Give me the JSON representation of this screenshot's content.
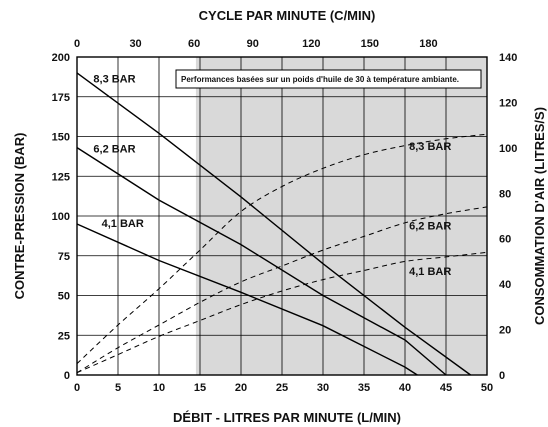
{
  "chart_data": {
    "type": "line",
    "top_axis_title": "CYCLE PAR MINUTE (C/MIN)",
    "xlabel": "DÉBIT - LITRES PAR MINUTE (L/MIN)",
    "ylabel_left": "CONTRE-PRESSION  (BAR)",
    "ylabel_right": "CONSOMMATION D'AIR (LITRES/S)",
    "annotation": "Performances basées sur un poids d'huile de 30 à température ambiante.",
    "xlim": [
      0,
      50
    ],
    "ylim_left": [
      0,
      200
    ],
    "ylim_right": [
      0,
      140
    ],
    "top_axis_range": [
      0,
      210
    ],
    "x_ticks": [
      0,
      5,
      10,
      15,
      20,
      25,
      30,
      35,
      40,
      45,
      50
    ],
    "y_left_ticks": [
      0,
      25,
      50,
      75,
      100,
      125,
      150,
      175,
      200
    ],
    "y_right_ticks": [
      0,
      20,
      40,
      60,
      80,
      100,
      120,
      140
    ],
    "top_ticks": [
      0,
      30,
      60,
      90,
      120,
      150,
      180
    ],
    "grid": true,
    "shaded_region_x": [
      14.5,
      50
    ],
    "pressure_series": [
      {
        "name": "8,3 BAR",
        "style": "solid",
        "axis": "left",
        "x": [
          0,
          10,
          20,
          30,
          40,
          48
        ],
        "y": [
          190,
          152,
          112,
          70,
          30,
          0
        ]
      },
      {
        "name": "6,2 BAR",
        "style": "solid",
        "axis": "left",
        "x": [
          0,
          10,
          20,
          30,
          40,
          45
        ],
        "y": [
          143,
          110,
          82,
          50,
          22,
          0
        ]
      },
      {
        "name": "4,1 BAR",
        "style": "solid",
        "axis": "left",
        "x": [
          0,
          10,
          20,
          30,
          40,
          41.5
        ],
        "y": [
          95,
          72,
          52,
          31,
          5,
          0
        ]
      }
    ],
    "air_series": [
      {
        "name": "8,3 BAR",
        "style": "dashed",
        "axis": "right",
        "x": [
          0,
          5,
          10,
          15,
          20,
          25,
          30,
          35,
          40,
          45,
          50
        ],
        "y": [
          5,
          22,
          38,
          55,
          72,
          83,
          91,
          97,
          101,
          104,
          106
        ]
      },
      {
        "name": "6,2 BAR",
        "style": "dashed",
        "axis": "right",
        "x": [
          0,
          5,
          10,
          15,
          20,
          25,
          30,
          35,
          40,
          45,
          50
        ],
        "y": [
          1,
          12,
          22,
          32,
          41,
          48,
          55,
          61,
          67,
          71,
          74
        ]
      },
      {
        "name": "4,1 BAR",
        "style": "dashed",
        "axis": "right",
        "x": [
          0,
          5,
          10,
          15,
          20,
          25,
          30,
          35,
          40,
          45,
          50
        ],
        "y": [
          1,
          9,
          17,
          24,
          31,
          37,
          42,
          46,
          50,
          52,
          54
        ]
      }
    ],
    "labels": [
      {
        "text": "8,3 BAR",
        "x": 2,
        "y": 184,
        "axis": "left"
      },
      {
        "text": "6,2 BAR",
        "x": 2,
        "y": 140,
        "axis": "left"
      },
      {
        "text": "4,1 BAR",
        "x": 3,
        "y": 93,
        "axis": "left"
      },
      {
        "text": "8,3 BAR",
        "x": 40.5,
        "y": 99,
        "axis": "right"
      },
      {
        "text": "6,2 BAR",
        "x": 40.5,
        "y": 64,
        "axis": "right"
      },
      {
        "text": "4,1 BAR",
        "x": 40.5,
        "y": 44,
        "axis": "right"
      }
    ]
  }
}
